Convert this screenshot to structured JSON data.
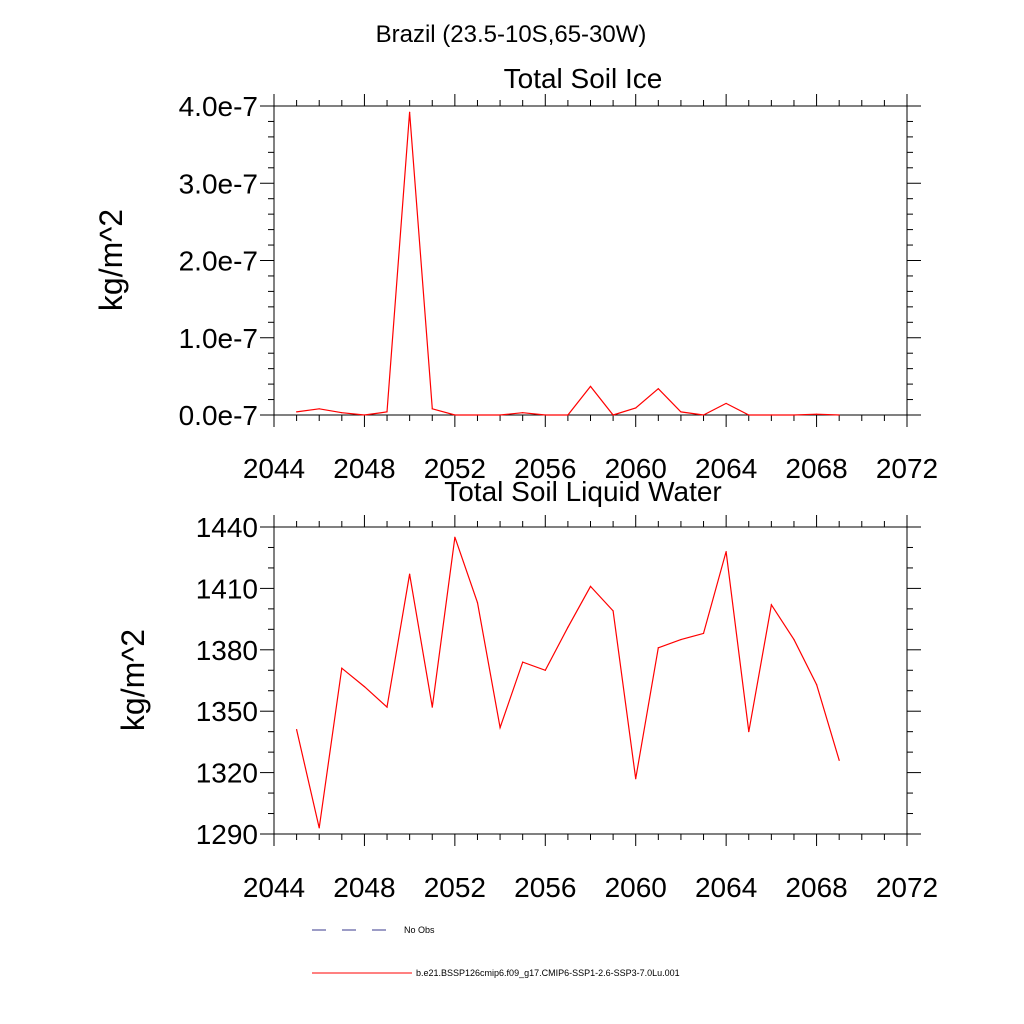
{
  "page_title": "Brazil (23.5-10S,65-30W)",
  "chart_data": [
    {
      "type": "line",
      "title": "Total Soil Ice",
      "xlabel": "",
      "ylabel": "kg/m^2",
      "xlim": [
        2044,
        2072
      ],
      "ylim": [
        0,
        4e-07
      ],
      "x_ticks": [
        2044,
        2048,
        2052,
        2056,
        2060,
        2064,
        2068,
        2072
      ],
      "x_tick_labels": [
        "2044",
        "2048",
        "2052",
        "2056",
        "2060",
        "2064",
        "2068",
        "2072"
      ],
      "y_ticks": [
        0,
        1e-07,
        2e-07,
        3e-07,
        4e-07
      ],
      "y_tick_labels": [
        "0.0e-7",
        "1.0e-7",
        "2.0e-7",
        "3.0e-7",
        "4.0e-7"
      ],
      "grid": false,
      "series": [
        {
          "name": "b.e21.BSSP126cmip6.f09_g17.CMIP6-SSP1-2.6-SSP3-7.0Lu.001",
          "color": "#ff0000",
          "x": [
            2045,
            2046,
            2047,
            2048,
            2049,
            2050,
            2051,
            2052,
            2053,
            2054,
            2055,
            2056,
            2057,
            2058,
            2059,
            2060,
            2061,
            2062,
            2063,
            2064,
            2065,
            2066,
            2067,
            2068,
            2069
          ],
          "y": [
            4e-09,
            8e-09,
            3e-09,
            0.0,
            4e-09,
            3.92e-07,
            8e-09,
            0.0,
            0.0,
            0.0,
            3e-09,
            0.0,
            0.0,
            3.7e-08,
            0.0,
            9e-09,
            3.4e-08,
            4e-09,
            0.0,
            1.5e-08,
            0.0,
            0.0,
            0.0,
            1e-09,
            0.0
          ]
        }
      ]
    },
    {
      "type": "line",
      "title": "Total Soil Liquid Water",
      "xlabel": "",
      "ylabel": "kg/m^2",
      "xlim": [
        2044,
        2072
      ],
      "ylim": [
        1290,
        1440
      ],
      "x_ticks": [
        2044,
        2048,
        2052,
        2056,
        2060,
        2064,
        2068,
        2072
      ],
      "x_tick_labels": [
        "2044",
        "2048",
        "2052",
        "2056",
        "2060",
        "2064",
        "2068",
        "2072"
      ],
      "y_ticks": [
        1290,
        1320,
        1350,
        1380,
        1410,
        1440
      ],
      "y_tick_labels": [
        "1290",
        "1320",
        "1350",
        "1380",
        "1410",
        "1440"
      ],
      "grid": false,
      "series": [
        {
          "name": "b.e21.BSSP126cmip6.f09_g17.CMIP6-SSP1-2.6-SSP3-7.0Lu.001",
          "color": "#ff0000",
          "x": [
            2045,
            2046,
            2047,
            2048,
            2049,
            2050,
            2051,
            2052,
            2053,
            2054,
            2055,
            2056,
            2057,
            2058,
            2059,
            2060,
            2061,
            2062,
            2063,
            2064,
            2065,
            2066,
            2067,
            2068,
            2069
          ],
          "y": [
            1341,
            1293,
            1371,
            1362,
            1352,
            1417,
            1352,
            1435,
            1403,
            1342,
            1374,
            1370,
            1391,
            1411,
            1399,
            1317,
            1381,
            1385,
            1388,
            1428,
            1340,
            1402,
            1385,
            1363,
            1326
          ]
        }
      ]
    }
  ],
  "legend": {
    "placement": "bottom",
    "items": [
      {
        "label": "No Obs",
        "color": "#3a3a8c",
        "dash": true
      },
      {
        "label": "b.e21.BSSP126cmip6.f09_g17.CMIP6-SSP1-2.6-SSP3-7.0Lu.001",
        "color": "#ff0000",
        "dash": false
      }
    ]
  }
}
